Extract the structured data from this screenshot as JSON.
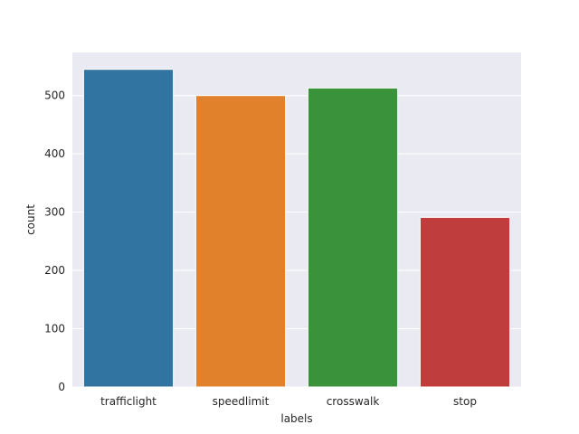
{
  "chart_data": {
    "type": "bar",
    "categories": [
      "trafficlight",
      "speedlimit",
      "crosswalk",
      "stop"
    ],
    "values": [
      545,
      500,
      513,
      291
    ],
    "colors": [
      "#3274a1",
      "#e1812c",
      "#3a923a",
      "#c03d3e"
    ],
    "background": "#eaeaf2",
    "grid": true,
    "grid_color": "#ffffff",
    "xlabel": "labels",
    "ylabel": "count",
    "ylim": [
      0,
      574
    ],
    "yticks": [
      0,
      100,
      200,
      300,
      400,
      500
    ]
  }
}
